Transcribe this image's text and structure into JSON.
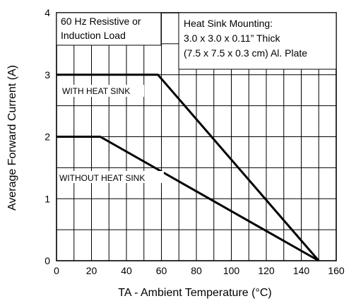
{
  "chart_data": {
    "type": "line",
    "xlabel": "TA - Ambient Temperature (°C)",
    "ylabel": "Average Forward Current (A)",
    "xlim": [
      0,
      160
    ],
    "ylim": [
      0,
      4
    ],
    "xticks": [
      0,
      20,
      40,
      60,
      80,
      100,
      120,
      140,
      160
    ],
    "yticks": [
      0,
      1,
      2,
      3,
      4
    ],
    "x_minor_step": 10,
    "y_minor_step": 0.5,
    "grid": true,
    "series": [
      {
        "name": "WITH HEAT SINK",
        "points": [
          [
            0,
            3.0
          ],
          [
            58,
            3.0
          ],
          [
            150,
            0
          ]
        ]
      },
      {
        "name": "WITHOUT HEAT SINK",
        "points": [
          [
            0,
            2.0
          ],
          [
            25,
            2.0
          ],
          [
            150,
            0
          ]
        ]
      }
    ],
    "annotations": {
      "load_line1": "60 Hz Resistive or",
      "load_line2": "Induction Load",
      "mount_line1": "Heat Sink Mounting:",
      "mount_line2": "3.0 x 3.0 x 0.11” Thick",
      "mount_line3": "(7.5 x 7.5 x 0.3 cm) Al. Plate"
    }
  }
}
